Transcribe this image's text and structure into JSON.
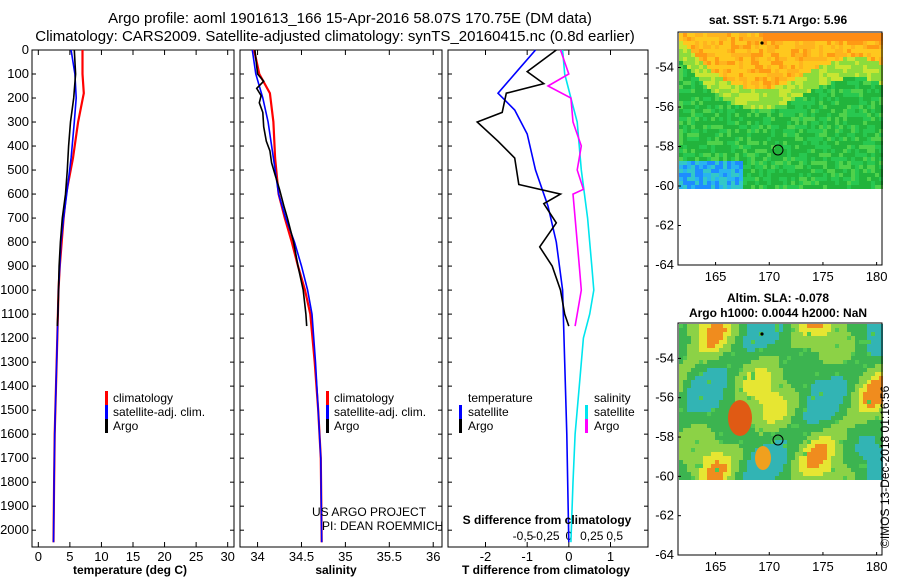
{
  "header": {
    "title_line1": "Argo profile: aoml 1901613_166 15-Apr-2016 58.07S 170.75E (DM data)",
    "title_line2": "Climatology: CARS2009. Satellite-adjusted climatology: synTS_20160415.nc (0.8d earlier)"
  },
  "colors": {
    "climatology": "#ff0000",
    "satellite": "#0000ff",
    "argo": "#000000",
    "sat_salinity": "#00e5ee",
    "argo_salinity": "#ff00ff"
  },
  "footer": {
    "credit_line1": "US ARGO PROJECT",
    "credit_line2": "PI: DEAN ROEMMICH",
    "timestamp": "©IMOS 13-Dec-2018 01:16:56"
  },
  "chart_data": [
    {
      "type": "line",
      "name": "temperature-profile",
      "xlabel": "temperature (deg C)",
      "xlim": [
        -1,
        31
      ],
      "ylim": [
        2070,
        0
      ],
      "xticks": [
        0,
        5,
        10,
        15,
        20,
        25,
        30
      ],
      "yticks": [
        0,
        100,
        200,
        300,
        400,
        500,
        600,
        700,
        800,
        900,
        1000,
        1100,
        1200,
        1300,
        1400,
        1500,
        1600,
        1700,
        1800,
        1900,
        2000
      ],
      "legend": [
        "climatology",
        "satellite-adj. clim.",
        "Argo"
      ],
      "series": [
        {
          "name": "climatology",
          "color": "#ff0000",
          "points": [
            [
              7.0,
              0
            ],
            [
              7.0,
              100
            ],
            [
              7.2,
              180
            ],
            [
              6.3,
              300
            ],
            [
              5.5,
              450
            ],
            [
              4.4,
              600
            ],
            [
              4.0,
              700
            ],
            [
              3.7,
              800
            ],
            [
              3.4,
              900
            ],
            [
              3.2,
              1000
            ],
            [
              3.0,
              1200
            ],
            [
              2.8,
              1400
            ],
            [
              2.6,
              1600
            ],
            [
              2.5,
              1800
            ],
            [
              2.4,
              2050
            ]
          ]
        },
        {
          "name": "satellite-adj. clim.",
          "color": "#0000ff",
          "points": [
            [
              5.2,
              0
            ],
            [
              5.8,
              100
            ],
            [
              6.0,
              200
            ],
            [
              5.7,
              300
            ],
            [
              5.2,
              450
            ],
            [
              4.5,
              600
            ],
            [
              4.0,
              700
            ],
            [
              3.6,
              800
            ],
            [
              3.4,
              900
            ],
            [
              3.2,
              1000
            ],
            [
              3.0,
              1200
            ],
            [
              2.8,
              1400
            ],
            [
              2.6,
              1600
            ],
            [
              2.5,
              1800
            ],
            [
              2.4,
              2050
            ]
          ]
        },
        {
          "name": "Argo",
          "color": "#000000",
          "points": [
            [
              5.7,
              0
            ],
            [
              5.9,
              100
            ],
            [
              5.6,
              200
            ],
            [
              5.1,
              300
            ],
            [
              4.8,
              400
            ],
            [
              4.6,
              500
            ],
            [
              4.3,
              600
            ],
            [
              3.8,
              700
            ],
            [
              3.5,
              800
            ],
            [
              3.3,
              900
            ],
            [
              3.2,
              1000
            ],
            [
              3.1,
              1100
            ],
            [
              3.0,
              1150
            ]
          ]
        }
      ]
    },
    {
      "type": "line",
      "name": "salinity-profile",
      "xlabel": "salinity",
      "xlim": [
        33.8,
        36.1
      ],
      "ylim": [
        2070,
        0
      ],
      "xticks": [
        34,
        34.5,
        35,
        35.5,
        36
      ],
      "xticklabels": [
        "34",
        "34.5",
        "35",
        "35.5",
        "36"
      ],
      "legend": [
        "climatology",
        "satellite-adj. clim.",
        "Argo"
      ],
      "series": [
        {
          "name": "climatology",
          "color": "#ff0000",
          "points": [
            [
              33.96,
              0
            ],
            [
              34.02,
              100
            ],
            [
              34.14,
              180
            ],
            [
              34.18,
              300
            ],
            [
              34.2,
              450
            ],
            [
              34.24,
              600
            ],
            [
              34.31,
              700
            ],
            [
              34.39,
              800
            ],
            [
              34.46,
              900
            ],
            [
              34.54,
              1000
            ],
            [
              34.6,
              1100
            ],
            [
              34.65,
              1300
            ],
            [
              34.69,
              1500
            ],
            [
              34.72,
              1700
            ],
            [
              34.73,
              2050
            ]
          ]
        },
        {
          "name": "satellite-adj. clim.",
          "color": "#0000ff",
          "points": [
            [
              33.94,
              0
            ],
            [
              33.98,
              100
            ],
            [
              34.06,
              200
            ],
            [
              34.12,
              300
            ],
            [
              34.18,
              450
            ],
            [
              34.24,
              600
            ],
            [
              34.32,
              700
            ],
            [
              34.42,
              800
            ],
            [
              34.5,
              900
            ],
            [
              34.57,
              1000
            ],
            [
              34.62,
              1100
            ],
            [
              34.66,
              1300
            ],
            [
              34.69,
              1500
            ],
            [
              34.72,
              1700
            ],
            [
              34.73,
              2050
            ]
          ]
        },
        {
          "name": "Argo",
          "color": "#000000",
          "points": [
            [
              33.97,
              0
            ],
            [
              34.0,
              100
            ],
            [
              34.07,
              130
            ],
            [
              33.99,
              160
            ],
            [
              34.04,
              190
            ],
            [
              34.02,
              220
            ],
            [
              34.06,
              260
            ],
            [
              34.07,
              320
            ],
            [
              34.1,
              380
            ],
            [
              34.14,
              420
            ],
            [
              34.16,
              470
            ],
            [
              34.2,
              520
            ],
            [
              34.25,
              580
            ],
            [
              34.3,
              650
            ],
            [
              34.34,
              700
            ],
            [
              34.41,
              800
            ],
            [
              34.46,
              900
            ],
            [
              34.52,
              1000
            ],
            [
              34.55,
              1100
            ],
            [
              34.56,
              1150
            ]
          ]
        }
      ]
    },
    {
      "type": "line",
      "name": "difference-profile",
      "xlabel": "T difference from climatology",
      "top_label": "S difference from climatology",
      "xlim": [
        -2.9,
        1.9
      ],
      "ylim": [
        2070,
        0
      ],
      "xticks": [
        -2,
        -1,
        0,
        1
      ],
      "xticklabels": [
        "-2",
        "-1",
        "0",
        "1"
      ],
      "s_ticks": [
        -0.5,
        -0.25,
        0,
        0.25,
        0.5
      ],
      "s_ticklabels": [
        "-0,5",
        "-0,25",
        "0",
        "0,25",
        "0,5"
      ],
      "legend_left": {
        "title": "temperature",
        "items": [
          "satellite",
          "Argo"
        ]
      },
      "legend_right": {
        "title": "salinity",
        "items": [
          "satellite",
          "Argo"
        ]
      },
      "series": [
        {
          "name": "T satellite",
          "color": "#0000ff",
          "points": [
            [
              -0.8,
              0
            ],
            [
              -1.2,
              80
            ],
            [
              -1.7,
              180
            ],
            [
              -1.3,
              250
            ],
            [
              -1.0,
              350
            ],
            [
              -0.8,
              500
            ],
            [
              -0.5,
              650
            ],
            [
              -0.3,
              800
            ],
            [
              -0.15,
              1000
            ],
            [
              -0.1,
              1300
            ],
            [
              -0.05,
              1600
            ],
            [
              0,
              2050
            ]
          ]
        },
        {
          "name": "T Argo",
          "color": "#000000",
          "points": [
            [
              -0.3,
              0
            ],
            [
              -1.0,
              90
            ],
            [
              -0.6,
              140
            ],
            [
              -1.5,
              180
            ],
            [
              -1.6,
              260
            ],
            [
              -2.2,
              300
            ],
            [
              -1.7,
              380
            ],
            [
              -1.3,
              450
            ],
            [
              -1.2,
              560
            ],
            [
              -0.2,
              600
            ],
            [
              -0.6,
              640
            ],
            [
              -0.3,
              720
            ],
            [
              -0.7,
              820
            ],
            [
              -0.4,
              900
            ],
            [
              -0.2,
              1000
            ],
            [
              -0.1,
              1100
            ],
            [
              0,
              1150
            ]
          ]
        },
        {
          "name": "S satellite",
          "color": "#00e5ee",
          "points": [
            [
              -0.15,
              0
            ],
            [
              -0.1,
              100
            ],
            [
              0.05,
              200
            ],
            [
              0.2,
              300
            ],
            [
              0.3,
              500
            ],
            [
              0.45,
              700
            ],
            [
              0.55,
              900
            ],
            [
              0.6,
              1000
            ],
            [
              0.5,
              1100
            ],
            [
              0.35,
              1200
            ],
            [
              0.25,
              1400
            ],
            [
              0.15,
              1600
            ],
            [
              0.1,
              1800
            ],
            [
              0.05,
              2050
            ]
          ]
        },
        {
          "name": "S Argo",
          "color": "#ff00ff",
          "points": [
            [
              -0.2,
              0
            ],
            [
              0.0,
              100
            ],
            [
              -0.5,
              150
            ],
            [
              0.05,
              200
            ],
            [
              0.1,
              300
            ],
            [
              0.3,
              400
            ],
            [
              0.2,
              500
            ],
            [
              0.35,
              580
            ],
            [
              0.1,
              600
            ],
            [
              0.15,
              700
            ],
            [
              0.2,
              800
            ],
            [
              0.25,
              900
            ],
            [
              0.3,
              1000
            ],
            [
              0.2,
              1100
            ],
            [
              0.15,
              1150
            ]
          ]
        }
      ]
    }
  ],
  "maps": {
    "sst": {
      "title": "sat. SST: 5.71 Argo: 5.96",
      "xticks": [
        "165",
        "170",
        "175",
        "180"
      ],
      "yticks": [
        "-54",
        "-56",
        "-58",
        "-60",
        "-62",
        "-64"
      ]
    },
    "sla": {
      "title_line1": "Altim. SLA: -0.078",
      "title_line2": "Argo h1000: 0.0044 h2000: NaN",
      "xticks": [
        "165",
        "170",
        "175",
        "180"
      ],
      "yticks": [
        "-54",
        "-56",
        "-58",
        "-60",
        "-62",
        "-64"
      ]
    }
  }
}
